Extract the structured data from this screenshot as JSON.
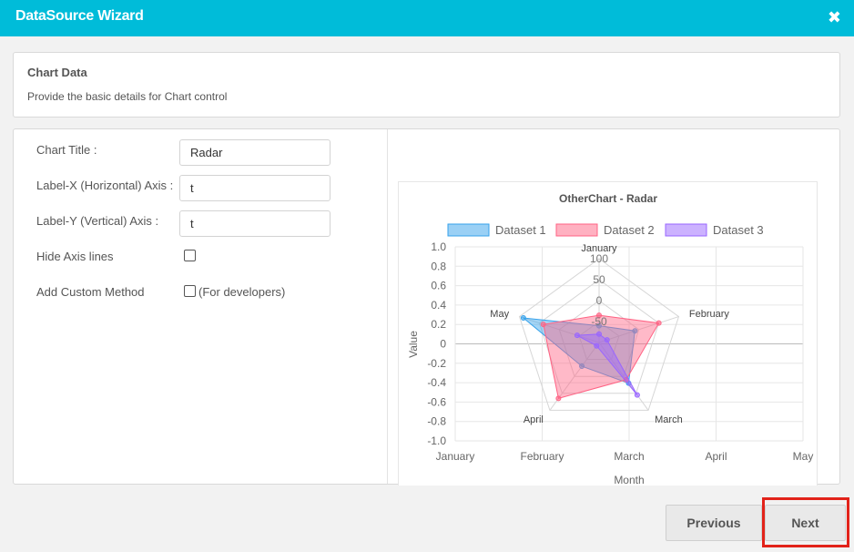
{
  "header": {
    "title": "DataSource Wizard",
    "close_icon": "close-icon"
  },
  "info": {
    "heading": "Chart Data",
    "description": "Provide the basic details for Chart control"
  },
  "form": {
    "chart_title_label": "Chart Title :",
    "chart_title_value": "Radar",
    "label_x_label": "Label-X (Horizontal) Axis :",
    "label_x_value": "t",
    "label_y_label": "Label-Y (Vertical) Axis :",
    "label_y_value": "t",
    "hide_axis_label": "Hide Axis lines",
    "hide_axis_checked": false,
    "custom_method_label": "Add Custom Method",
    "custom_method_checked": false,
    "custom_method_note": "(For developers)"
  },
  "chart_data": {
    "type": "radar",
    "title": "OtherChart - Radar",
    "xlabel": "Month",
    "ylabel": "Value",
    "x_ticks": [
      "January",
      "February",
      "March",
      "April",
      "May"
    ],
    "y_ticks": [
      "1.0",
      "0.8",
      "0.6",
      "0.4",
      "0.2",
      "0",
      "-0.2",
      "-0.4",
      "-0.6",
      "-0.8",
      "-1.0"
    ],
    "ylim": [
      -1.0,
      1.0
    ],
    "categories": [
      "January",
      "February",
      "March",
      "April",
      "May"
    ],
    "radial_ticks": [
      "100",
      "50",
      "0",
      "-50"
    ],
    "radial_range": [
      -100,
      100
    ],
    "legend_position": "top",
    "series": [
      {
        "name": "Dataset 1",
        "color": "#36a2eb",
        "values": [
          -60,
          -10,
          20,
          -30,
          90
        ]
      },
      {
        "name": "Dataset 2",
        "color": "#ff6384",
        "values": [
          -35,
          50,
          10,
          65,
          40
        ]
      },
      {
        "name": "Dataset 3",
        "color": "#9966ff",
        "values": [
          -80,
          -80,
          55,
          -90,
          -45
        ]
      }
    ]
  },
  "buttons": {
    "previous": "Previous",
    "next": "Next"
  }
}
